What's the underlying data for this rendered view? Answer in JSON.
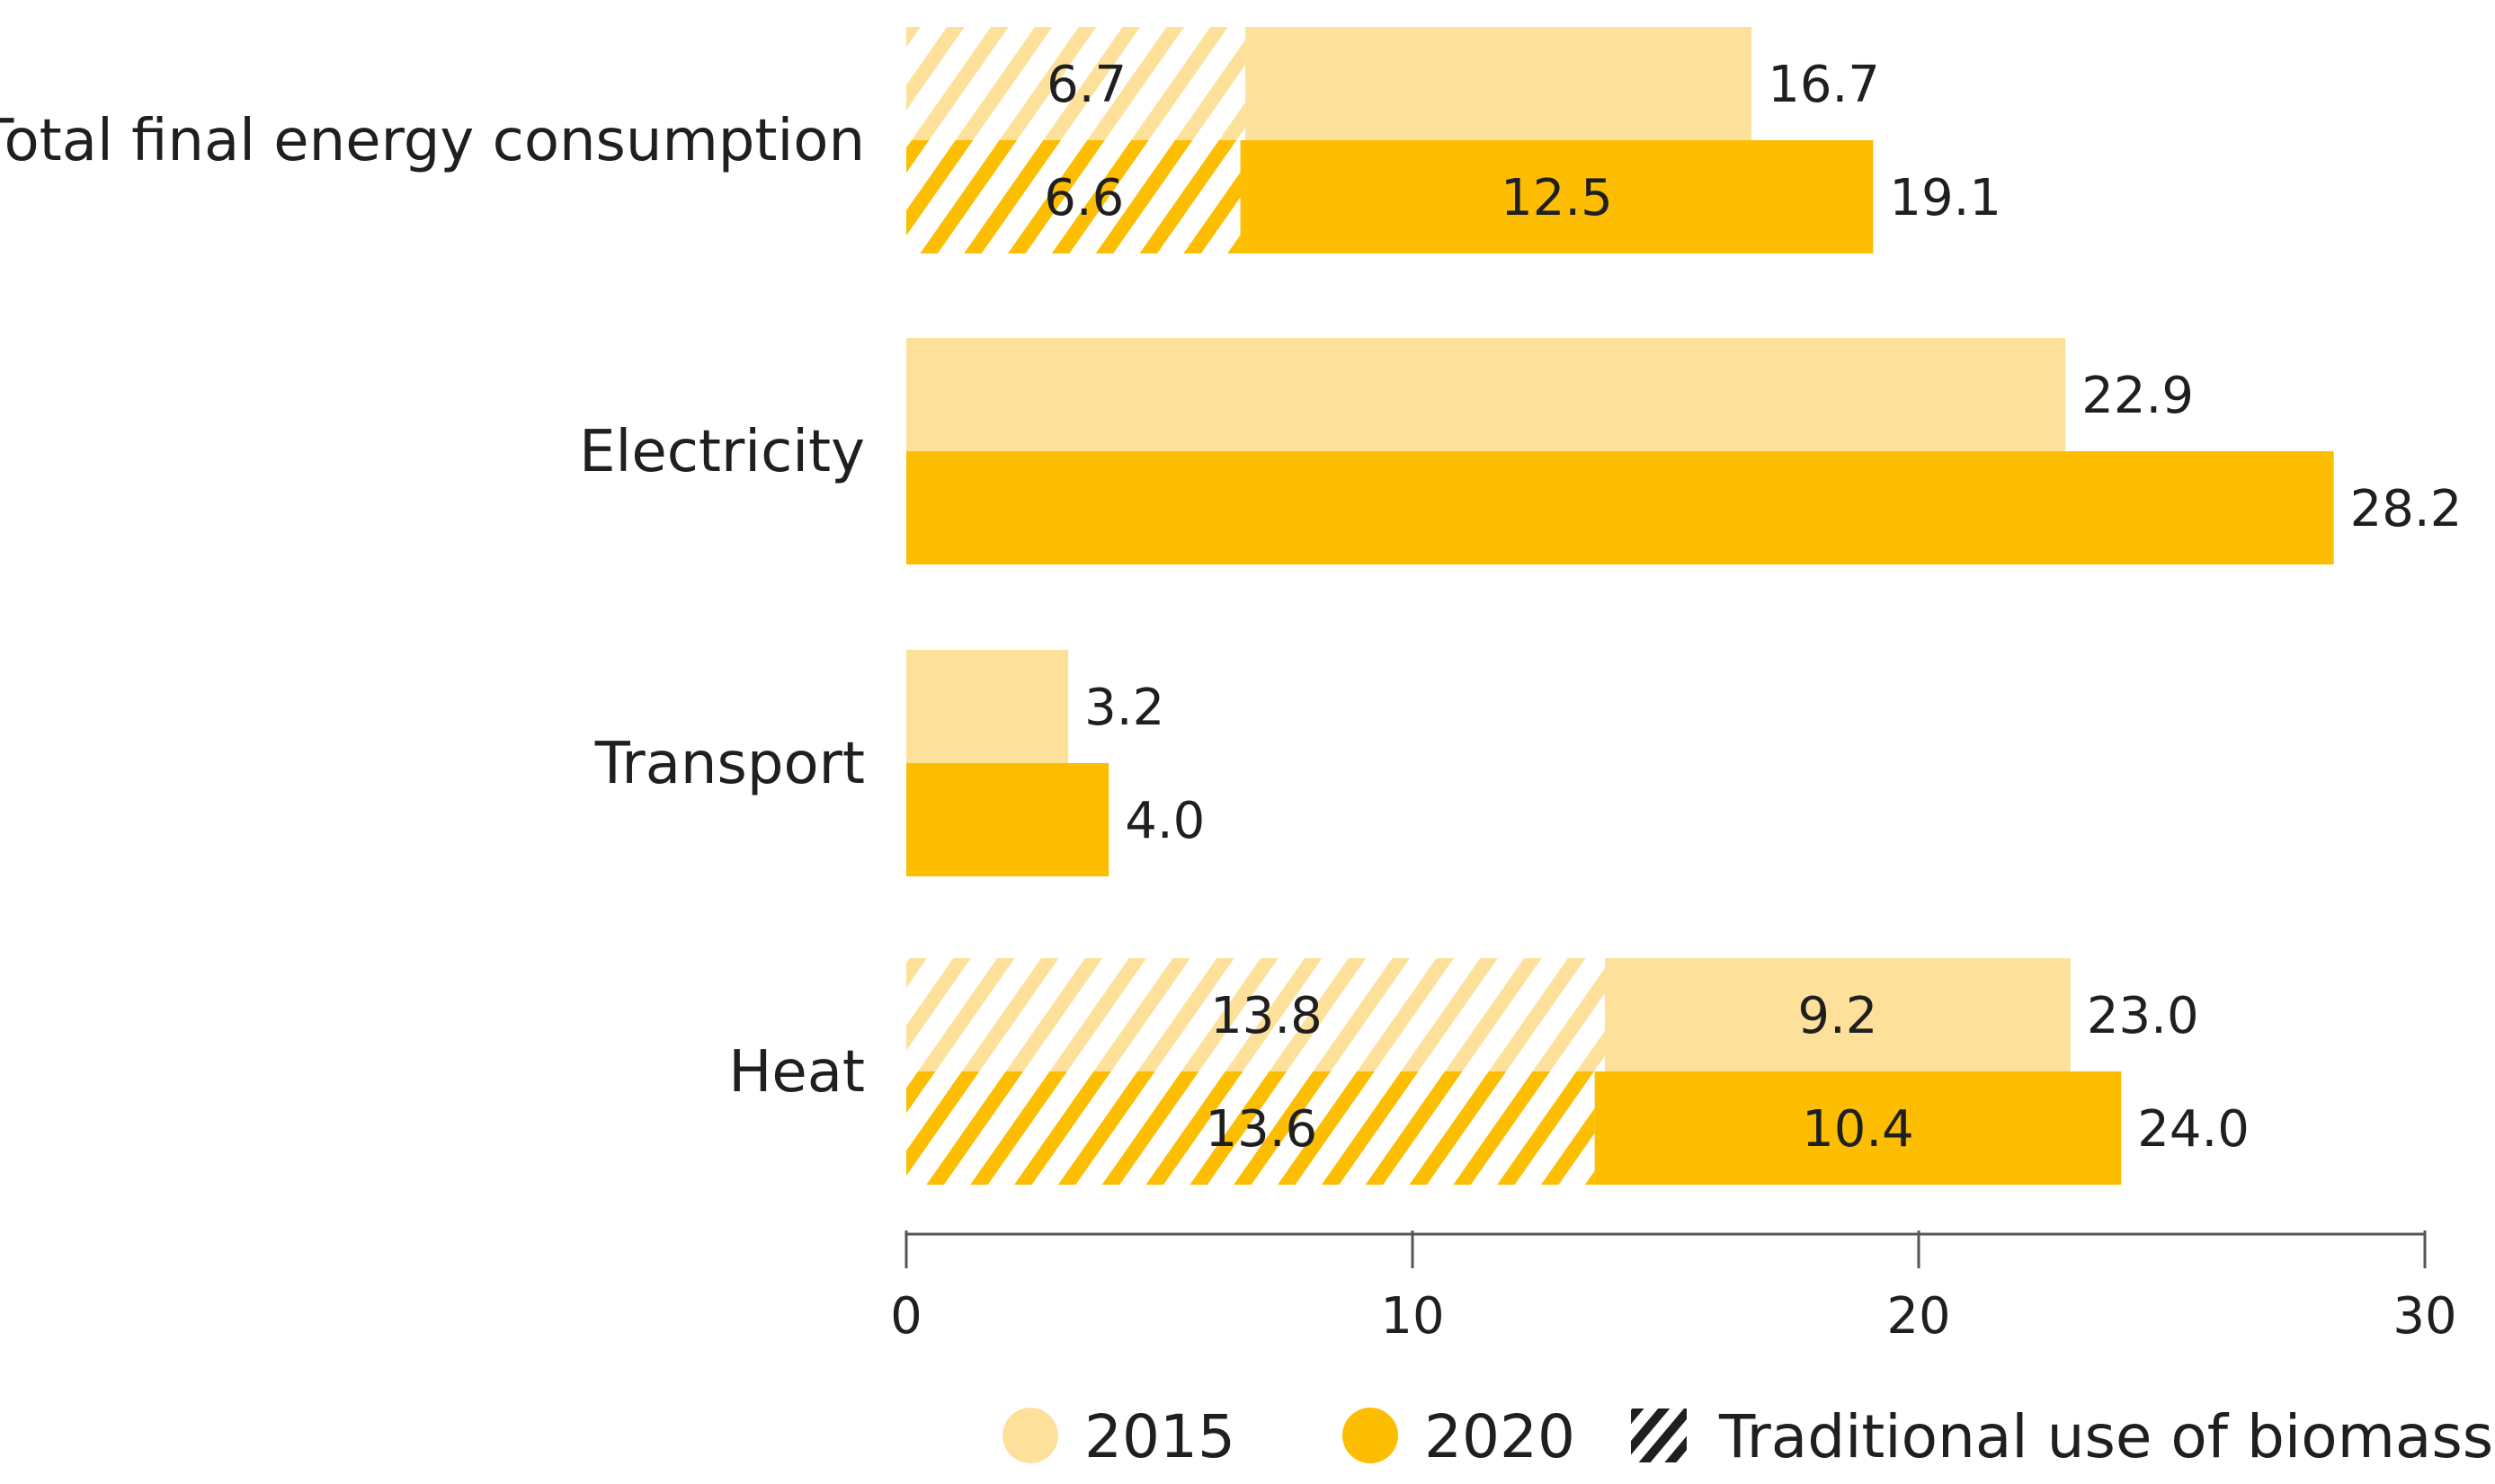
{
  "chart_data": {
    "type": "bar",
    "orientation": "horizontal",
    "stacked": true,
    "categories": [
      "Total final energy consumption",
      "Electricity",
      "Transport",
      "Heat"
    ],
    "series": [
      {
        "name": "2015",
        "color": "#fde19a",
        "bars": [
          {
            "traditional": 6.7,
            "modern": 10.0,
            "total": 16.7,
            "labels": [
              "6.7",
              "16.7"
            ]
          },
          {
            "traditional": 0,
            "modern": 22.9,
            "total": 22.9,
            "labels": [
              "22.9"
            ]
          },
          {
            "traditional": 0,
            "modern": 3.2,
            "total": 3.2,
            "labels": [
              "3.2"
            ]
          },
          {
            "traditional": 13.8,
            "modern": 9.2,
            "total": 23.0,
            "labels": [
              "13.8",
              "9.2",
              "23.0"
            ]
          }
        ]
      },
      {
        "name": "2020",
        "color": "#fdbd00",
        "bars": [
          {
            "traditional": 6.6,
            "modern": 12.5,
            "total": 19.1,
            "labels": [
              "6.6",
              "12.5",
              "19.1"
            ]
          },
          {
            "traditional": 0,
            "modern": 28.2,
            "total": 28.2,
            "labels": [
              "28.2"
            ]
          },
          {
            "traditional": 0,
            "modern": 4.0,
            "total": 4.0,
            "labels": [
              "4.0"
            ]
          },
          {
            "traditional": 13.6,
            "modern": 10.4,
            "total": 24.0,
            "labels": [
              "13.6",
              "10.4",
              "24.0"
            ]
          }
        ]
      }
    ],
    "xlim": [
      0,
      30
    ],
    "xticks": [
      "0",
      "10",
      "20",
      "30"
    ],
    "grid": false,
    "legend": {
      "position": "bottom-right",
      "entries": [
        "2015",
        "2020",
        "Traditional use of biomass"
      ]
    }
  }
}
